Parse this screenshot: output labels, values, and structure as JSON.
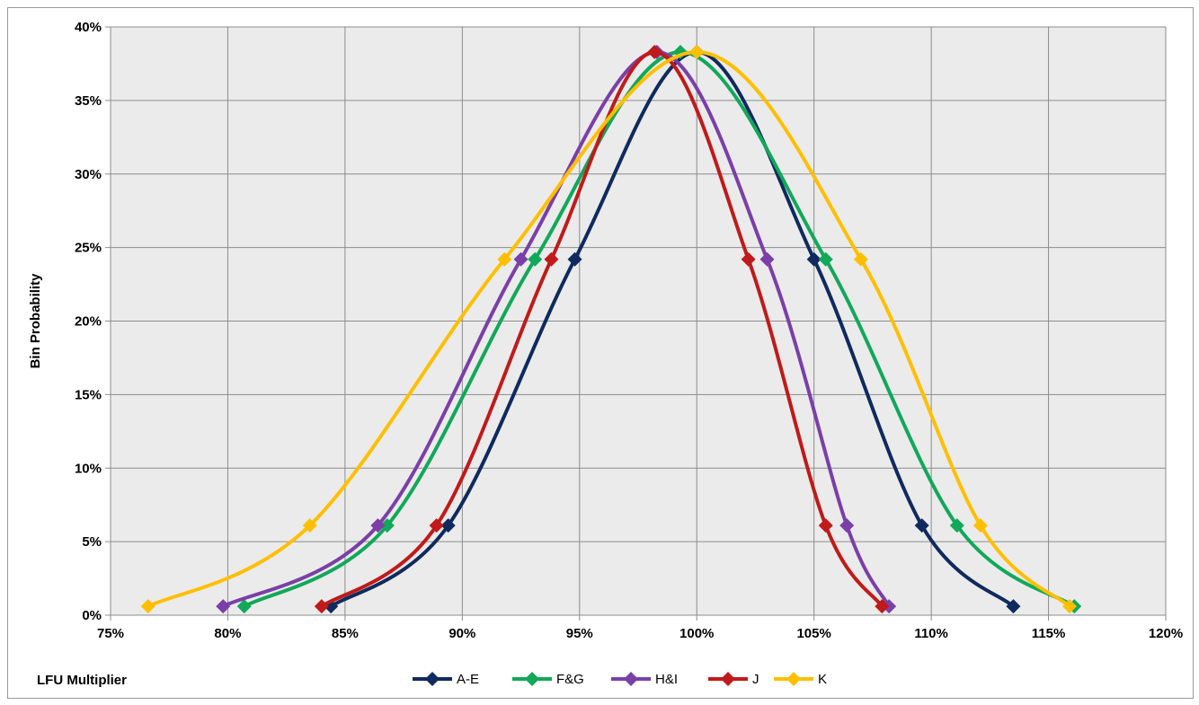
{
  "chart_data": {
    "type": "line",
    "xlabel": "LFU Multiplier",
    "ylabel": "Bin Probability",
    "xlim": [
      75,
      120
    ],
    "ylim": [
      0,
      40
    ],
    "x_ticks": [
      "75%",
      "80%",
      "85%",
      "90%",
      "95%",
      "100%",
      "105%",
      "110%",
      "115%",
      "120%"
    ],
    "y_ticks": [
      "0%",
      "5%",
      "10%",
      "15%",
      "20%",
      "25%",
      "30%",
      "35%",
      "40%"
    ],
    "grid": true,
    "legend_position": "bottom",
    "plot_background": "#ebebeb",
    "grid_color": "#8c8c8c",
    "series": [
      {
        "name": "A-E",
        "color": "#0f2a5e",
        "x": [
          84.4,
          89.4,
          94.8,
          100.0,
          105.0,
          109.6,
          113.5
        ],
        "y": [
          0.6,
          6.1,
          24.2,
          38.3,
          24.2,
          6.1,
          0.6
        ]
      },
      {
        "name": "F&G",
        "color": "#11a85a",
        "x": [
          80.7,
          86.8,
          93.1,
          99.3,
          105.5,
          111.1,
          116.1
        ],
        "y": [
          0.6,
          6.1,
          24.2,
          38.3,
          24.2,
          6.1,
          0.6
        ]
      },
      {
        "name": "H&I",
        "color": "#7a3fa8",
        "x": [
          79.8,
          86.4,
          92.5,
          98.3,
          103.0,
          106.4,
          108.2
        ],
        "y": [
          0.6,
          6.1,
          24.2,
          38.3,
          24.2,
          6.1,
          0.6
        ]
      },
      {
        "name": "J",
        "color": "#c01a1a",
        "x": [
          84.0,
          88.9,
          93.8,
          98.2,
          102.2,
          105.5,
          107.9
        ],
        "y": [
          0.6,
          6.1,
          24.2,
          38.3,
          24.2,
          6.1,
          0.6
        ]
      },
      {
        "name": "K",
        "color": "#ffbf00",
        "x": [
          76.6,
          83.5,
          91.8,
          100.0,
          107.0,
          112.1,
          115.9
        ],
        "y": [
          0.6,
          6.1,
          24.2,
          38.3,
          24.2,
          6.1,
          0.6
        ]
      }
    ]
  }
}
